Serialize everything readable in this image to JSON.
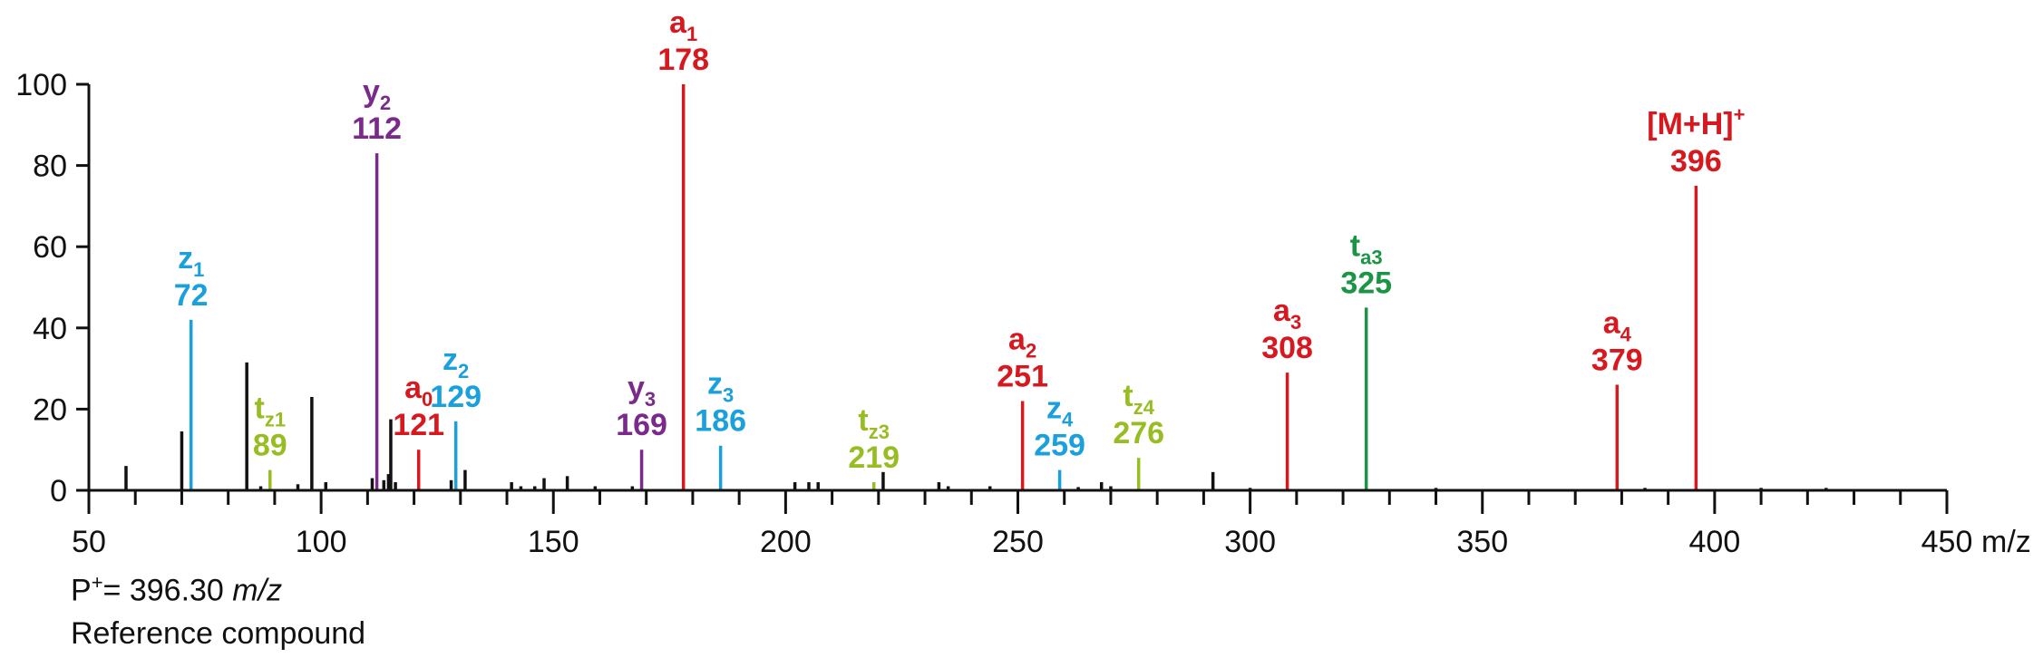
{
  "colors": {
    "a": "#d7191f",
    "y": "#7a2a8b",
    "z": "#1ba0de",
    "tz": "#98bd22",
    "ta": "#1b9445",
    "base": "#111111"
  },
  "chart_data": {
    "type": "bar",
    "xlabel": "m/z",
    "xlim": [
      50,
      450
    ],
    "ylim": [
      0,
      100
    ],
    "x_ticks": [
      50,
      100,
      150,
      200,
      250,
      300,
      350,
      400,
      450
    ],
    "y_ticks": [
      0,
      20,
      40,
      60,
      80,
      100
    ],
    "x_minor_step": 10,
    "labeled_peaks": [
      {
        "mz": 72,
        "intensity": 42,
        "ion": "z",
        "sub": "1",
        "value": "72",
        "group": "z"
      },
      {
        "mz": 89,
        "intensity": 5,
        "ion": "t",
        "sub": "z1",
        "value": "89",
        "group": "tz"
      },
      {
        "mz": 112,
        "intensity": 83,
        "ion": "y",
        "sub": "2",
        "value": "112",
        "group": "y"
      },
      {
        "mz": 121,
        "intensity": 10,
        "ion": "a",
        "sub": "0",
        "value": "121",
        "group": "a"
      },
      {
        "mz": 129,
        "intensity": 17,
        "ion": "z",
        "sub": "2",
        "value": "129",
        "group": "z"
      },
      {
        "mz": 169,
        "intensity": 10,
        "ion": "y",
        "sub": "3",
        "value": "169",
        "group": "y"
      },
      {
        "mz": 178,
        "intensity": 100,
        "ion": "a",
        "sub": "1",
        "value": "178",
        "group": "a"
      },
      {
        "mz": 186,
        "intensity": 11,
        "ion": "z",
        "sub": "3",
        "value": "186",
        "group": "z"
      },
      {
        "mz": 219,
        "intensity": 2,
        "ion": "t",
        "sub": "z3",
        "value": "219",
        "group": "tz"
      },
      {
        "mz": 251,
        "intensity": 22,
        "ion": "a",
        "sub": "2",
        "value": "251",
        "group": "a"
      },
      {
        "mz": 259,
        "intensity": 5,
        "ion": "z",
        "sub": "4",
        "value": "259",
        "group": "z"
      },
      {
        "mz": 276,
        "intensity": 8,
        "ion": "t",
        "sub": "z4",
        "value": "276",
        "group": "tz"
      },
      {
        "mz": 308,
        "intensity": 29,
        "ion": "a",
        "sub": "3",
        "value": "308",
        "group": "a"
      },
      {
        "mz": 325,
        "intensity": 45,
        "ion": "t",
        "sub": "a3",
        "value": "325",
        "group": "ta"
      },
      {
        "mz": 379,
        "intensity": 26,
        "ion": "a",
        "sub": "4",
        "value": "379",
        "group": "a"
      },
      {
        "mz": 396,
        "intensity": 75,
        "ion": "[M+H]",
        "sup": "+",
        "value": "396",
        "group": "a"
      }
    ],
    "unlabeled_peaks": [
      {
        "mz": 58,
        "intensity": 6
      },
      {
        "mz": 70,
        "intensity": 14.5
      },
      {
        "mz": 84,
        "intensity": 31.5
      },
      {
        "mz": 87,
        "intensity": 1
      },
      {
        "mz": 95,
        "intensity": 1.5
      },
      {
        "mz": 98,
        "intensity": 23
      },
      {
        "mz": 101,
        "intensity": 2
      },
      {
        "mz": 111,
        "intensity": 3
      },
      {
        "mz": 113.5,
        "intensity": 2.5
      },
      {
        "mz": 114.5,
        "intensity": 4
      },
      {
        "mz": 115,
        "intensity": 17.5
      },
      {
        "mz": 116,
        "intensity": 2
      },
      {
        "mz": 128,
        "intensity": 2.5
      },
      {
        "mz": 131,
        "intensity": 5
      },
      {
        "mz": 141,
        "intensity": 2
      },
      {
        "mz": 143,
        "intensity": 1
      },
      {
        "mz": 146,
        "intensity": 1
      },
      {
        "mz": 148,
        "intensity": 3
      },
      {
        "mz": 153,
        "intensity": 3.5
      },
      {
        "mz": 159,
        "intensity": 1
      },
      {
        "mz": 167,
        "intensity": 1
      },
      {
        "mz": 202,
        "intensity": 2
      },
      {
        "mz": 205,
        "intensity": 2
      },
      {
        "mz": 207,
        "intensity": 2
      },
      {
        "mz": 221,
        "intensity": 4.5
      },
      {
        "mz": 233,
        "intensity": 2
      },
      {
        "mz": 235,
        "intensity": 1
      },
      {
        "mz": 244,
        "intensity": 1
      },
      {
        "mz": 263,
        "intensity": 0.8
      },
      {
        "mz": 268,
        "intensity": 2
      },
      {
        "mz": 270,
        "intensity": 1
      },
      {
        "mz": 292,
        "intensity": 4.5
      },
      {
        "mz": 300,
        "intensity": 0.6
      },
      {
        "mz": 340,
        "intensity": 0.6
      },
      {
        "mz": 385,
        "intensity": 0.6
      },
      {
        "mz": 410,
        "intensity": 0.6
      },
      {
        "mz": 424,
        "intensity": 0.6
      }
    ]
  },
  "footnote": {
    "p_label": "P",
    "p_sup": "+",
    "p_value": "= 396.30 ",
    "p_unit": "m/z",
    "compound": "Reference compound"
  }
}
